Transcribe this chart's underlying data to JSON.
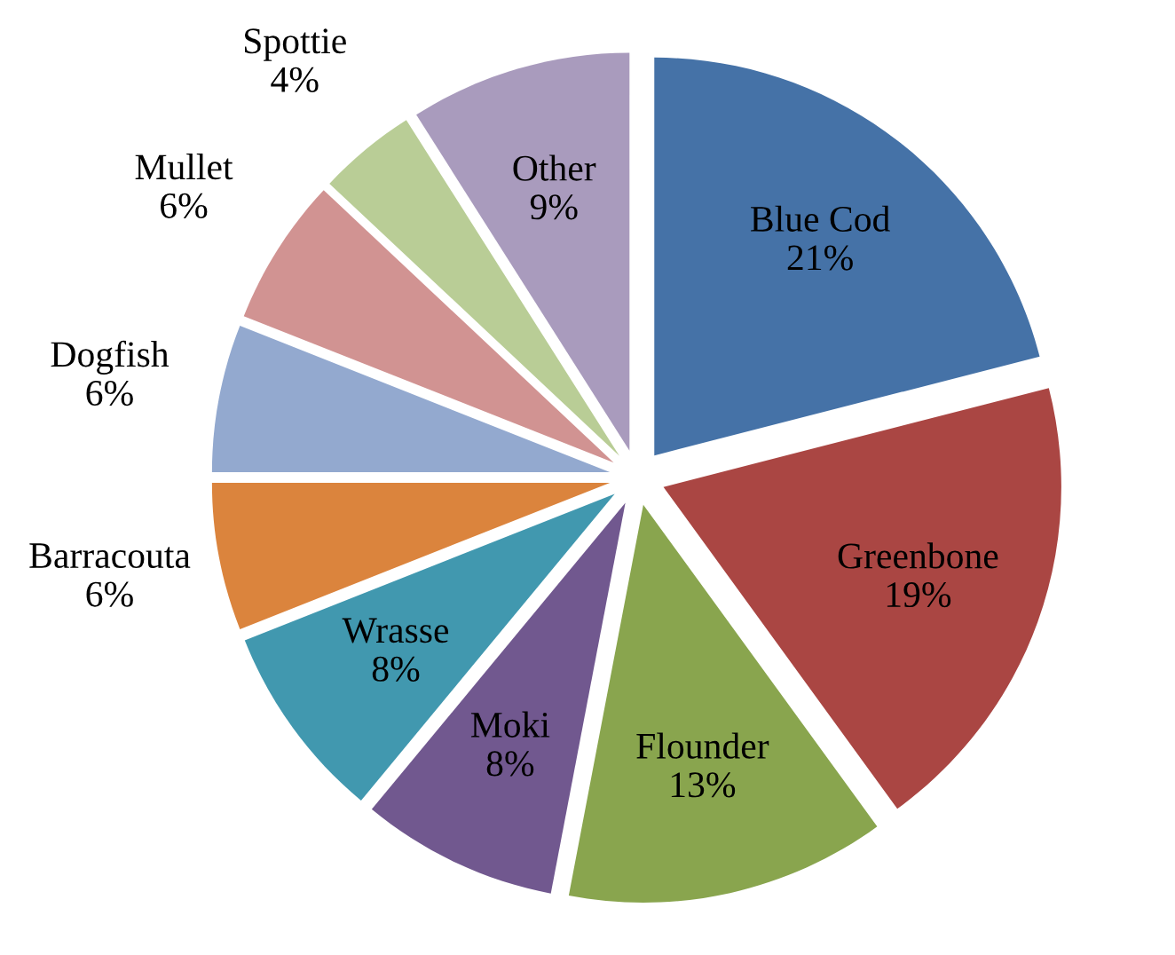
{
  "chart_data": {
    "type": "pie",
    "categories": [
      "Blue Cod",
      "Greenbone",
      "Flounder",
      "Moki",
      "Wrasse",
      "Barracouta",
      "Dogfish",
      "Mullet",
      "Spottie",
      "Other"
    ],
    "values": [
      21,
      19,
      13,
      8,
      8,
      6,
      6,
      6,
      4,
      9
    ],
    "value_labels": [
      "21%",
      "19%",
      "13%",
      "8%",
      "8%",
      "6%",
      "6%",
      "6%",
      "4%",
      "9%"
    ],
    "colors": [
      "#4572a7",
      "#aa4643",
      "#89a54e",
      "#71588f",
      "#4198af",
      "#db843d",
      "#93a9cf",
      "#d19392",
      "#b9cd96",
      "#a99bbd"
    ],
    "legend": false
  }
}
